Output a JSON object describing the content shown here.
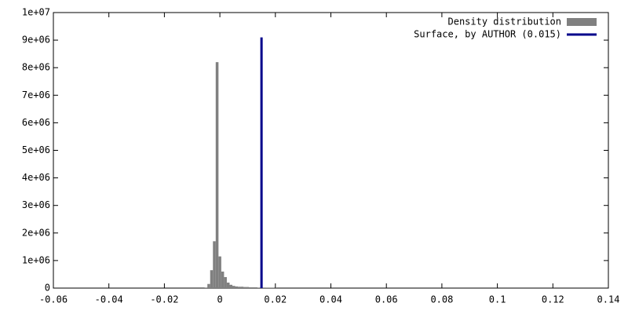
{
  "chart_data": {
    "type": "histogram",
    "name": "Density distribution",
    "color": "#808080",
    "bins": [
      -0.0075,
      -0.0065,
      -0.0055,
      -0.0045,
      -0.0035,
      -0.0025,
      -0.0015,
      -0.0005,
      0.0005,
      0.0015,
      0.0025,
      0.0035,
      0.0045,
      0.0055,
      0.0065,
      0.0075,
      0.0085,
      0.0095,
      0.0105,
      0.0115,
      0.0125,
      0.0135,
      0.0145,
      0.0155,
      0.0165,
      0.0175,
      0.0185,
      0.0195,
      0.0205
    ],
    "values": [
      0,
      0,
      20000,
      150000,
      650000,
      1700000,
      8200000,
      1150000,
      600000,
      400000,
      200000,
      120000,
      80000,
      60000,
      50000,
      50000,
      40000,
      40000,
      30000,
      30000,
      30000,
      20000,
      20000,
      20000,
      10000,
      10000,
      10000,
      5000
    ],
    "lines": [
      {
        "name": "Surface, by AUTHOR (0.015)",
        "color": "#00008b",
        "x": [
          0.015,
          0.015
        ],
        "values": [
          0,
          9100000
        ]
      }
    ],
    "xlim": [
      -0.06,
      0.14
    ],
    "xticks": [
      -0.06,
      -0.04,
      -0.02,
      0,
      0.02,
      0.04,
      0.06,
      0.08,
      0.1,
      0.12,
      0.14
    ],
    "ylim": [
      0,
      10000000
    ],
    "yticks": [
      0,
      {
        "value": 1000000,
        "label": "1e+06"
      },
      {
        "value": 2000000,
        "label": "2e+06"
      },
      {
        "value": 3000000,
        "label": "3e+06"
      },
      {
        "value": 4000000,
        "label": "4e+06"
      },
      {
        "value": 5000000,
        "label": "5e+06"
      },
      {
        "value": 6000000,
        "label": "6e+06"
      },
      {
        "value": 7000000,
        "label": "7e+06"
      },
      {
        "value": 8000000,
        "label": "8e+06"
      },
      {
        "value": 9000000,
        "label": "9e+06"
      },
      {
        "value": 10000000,
        "label": "1e+07"
      }
    ],
    "legend": "top-right"
  }
}
